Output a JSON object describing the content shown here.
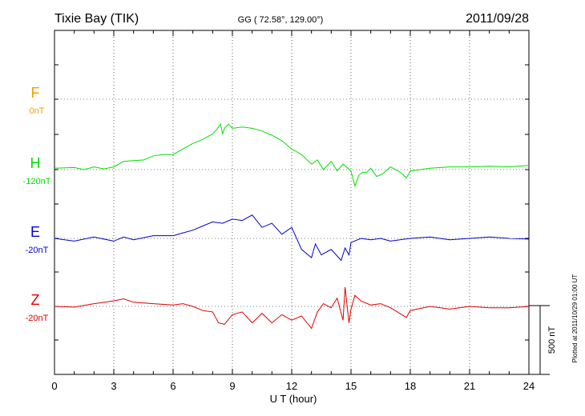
{
  "chart_data": {
    "type": "line",
    "title": "Tixie Bay (TIK)",
    "subtitle": "GG ( 72.58°, 129.00°)",
    "date": "2011/09/28",
    "xlabel": "U T (hour)",
    "xlim": [
      0,
      24
    ],
    "x_ticks": [
      "0",
      "3",
      "6",
      "9",
      "12",
      "15",
      "18",
      "21",
      "24"
    ],
    "grid": true,
    "scale_bar_label": "500 nT",
    "scale_bar_nT": 500,
    "plotted_note": "Plotted at 2011/10/29 01:00 UT",
    "series": [
      {
        "name": "F",
        "baseline_label": "0nT",
        "color": "#f0a000",
        "x": [],
        "values": []
      },
      {
        "name": "H",
        "baseline_label": "-120nT",
        "color": "#00e000",
        "x": [
          0,
          1,
          1.5,
          2,
          2.5,
          3,
          3.5,
          4,
          4.5,
          5,
          5.5,
          6,
          6.5,
          7,
          7.5,
          8,
          8.2,
          8.4,
          8.5,
          8.6,
          8.8,
          9,
          9.5,
          10,
          10.5,
          11,
          11.5,
          12,
          12.5,
          13,
          13.3,
          13.6,
          14,
          14.3,
          14.6,
          15,
          15.2,
          15.4,
          15.6,
          15.8,
          16,
          16.3,
          16.6,
          17,
          17.5,
          17.8,
          18,
          18.5,
          19,
          20,
          21,
          22,
          23,
          24
        ],
        "values": [
          10,
          15,
          0,
          20,
          5,
          20,
          60,
          65,
          70,
          100,
          110,
          110,
          150,
          190,
          220,
          260,
          290,
          330,
          260,
          300,
          330,
          300,
          310,
          300,
          280,
          250,
          210,
          150,
          110,
          40,
          70,
          0,
          60,
          -10,
          40,
          -10,
          -120,
          -40,
          -20,
          -20,
          10,
          -50,
          -30,
          20,
          -20,
          -60,
          -10,
          0,
          10,
          20,
          20,
          25,
          20,
          30
        ]
      },
      {
        "name": "E",
        "baseline_label": "-20nT",
        "color": "#0000d0",
        "x": [
          0,
          1,
          2,
          3,
          3.5,
          4,
          5,
          6,
          6.5,
          7,
          7.5,
          8,
          8.5,
          9,
          9.5,
          10,
          10.5,
          11,
          11.5,
          12,
          12.5,
          13,
          13.2,
          13.5,
          14,
          14.5,
          14.7,
          14.9,
          15,
          15.5,
          16,
          16.5,
          17,
          18,
          19,
          20,
          21,
          22,
          23,
          24
        ],
        "values": [
          0,
          -20,
          10,
          -20,
          10,
          -10,
          20,
          20,
          40,
          60,
          90,
          120,
          110,
          140,
          130,
          170,
          80,
          110,
          30,
          80,
          -80,
          -140,
          -40,
          -120,
          -80,
          -160,
          -70,
          -120,
          -30,
          0,
          -10,
          0,
          -20,
          0,
          10,
          -10,
          0,
          10,
          0,
          -5
        ]
      },
      {
        "name": "Z",
        "baseline_label": "-20nT",
        "color": "#e00000",
        "x": [
          0,
          1,
          2,
          3,
          3.5,
          4,
          5,
          6,
          6.5,
          7,
          7.5,
          8,
          8.3,
          8.6,
          9,
          9.5,
          10,
          10.5,
          11,
          11.5,
          12,
          12.5,
          13,
          13.3,
          13.6,
          14,
          14.3,
          14.6,
          14.7,
          14.9,
          15,
          15.2,
          15.5,
          16,
          16.5,
          17,
          17.8,
          18,
          19,
          20,
          21,
          22,
          23,
          24
        ],
        "values": [
          0,
          -5,
          20,
          40,
          55,
          30,
          20,
          10,
          20,
          0,
          -30,
          -40,
          -120,
          -130,
          -60,
          -40,
          -120,
          -50,
          -120,
          -60,
          -100,
          -70,
          -160,
          -40,
          20,
          -10,
          60,
          -100,
          140,
          -120,
          -20,
          80,
          40,
          10,
          20,
          -10,
          -80,
          -30,
          0,
          -20,
          0,
          -10,
          -10,
          0
        ]
      }
    ]
  }
}
